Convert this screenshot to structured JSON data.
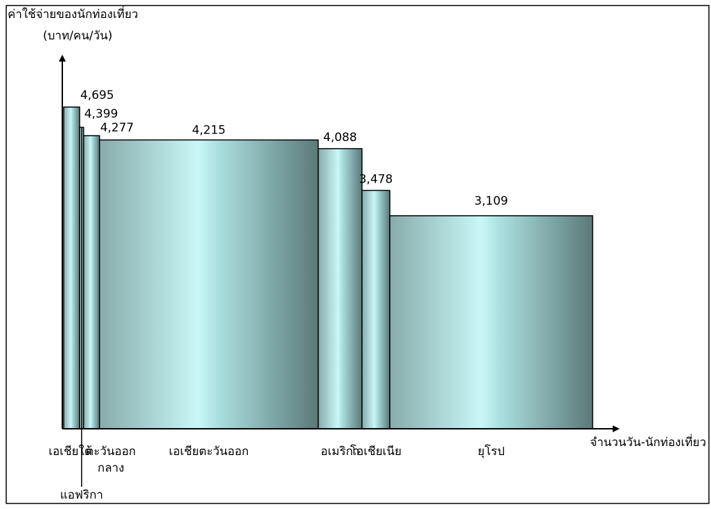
{
  "chart_data": {
    "type": "bar",
    "variant": "variable-width",
    "y_axis_label_line1": "ค่าใช้จ่ายของนักท่องเที่ยว",
    "y_axis_label_line2": "(บาท/คน/วัน)",
    "x_axis_label": "จำนวนวัน-นักท่องเที่ยว",
    "ylim": [
      0,
      5450
    ],
    "grid": false,
    "legend": "none",
    "bars": [
      {
        "category": "เอเชียใต้",
        "value": 4695,
        "value_label": "4,695",
        "relative_width": 4
      },
      {
        "category": "แอฟริกา",
        "value": 4399,
        "value_label": "4,399",
        "relative_width": 1
      },
      {
        "category": "ตะวันออกกลาง",
        "category_line1": "ตะวันออก",
        "category_line2": "กลาง",
        "value": 4277,
        "value_label": "4,277",
        "relative_width": 4
      },
      {
        "category": "เอเชียตะวันออก",
        "value": 4215,
        "value_label": "4,215",
        "relative_width": 55
      },
      {
        "category": "อเมริกา",
        "value": 4088,
        "value_label": "4,088",
        "relative_width": 11
      },
      {
        "category": "โอเชียเนีย",
        "value": 3478,
        "value_label": "3,478",
        "relative_width": 7
      },
      {
        "category": "ยุโรป",
        "value": 3109,
        "value_label": "3,109",
        "relative_width": 51
      }
    ]
  }
}
